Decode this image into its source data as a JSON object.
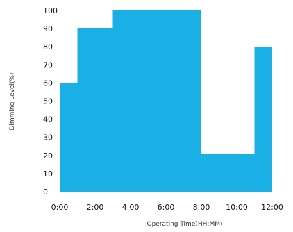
{
  "chart_data": {
    "type": "area",
    "title": "",
    "xlabel": "Operating Time(HH:MM)",
    "ylabel": "Dimming Level(%)",
    "xlim": [
      0,
      12
    ],
    "ylim": [
      0,
      100
    ],
    "x_ticks": [
      "0:00",
      "2:00",
      "4:00",
      "6:00",
      "8:00",
      "10:00",
      "12:00"
    ],
    "y_ticks": [
      0,
      10,
      20,
      30,
      40,
      50,
      60,
      70,
      80,
      90,
      100
    ],
    "grid": false,
    "legend": "none",
    "series": [
      {
        "steps": [
          {
            "start": 0,
            "end": 1,
            "value": 60
          },
          {
            "start": 1,
            "end": 3,
            "value": 90
          },
          {
            "start": 3,
            "end": 8,
            "value": 100
          },
          {
            "start": 8,
            "end": 11,
            "value": 21
          },
          {
            "start": 11,
            "end": 12,
            "value": 80
          }
        ]
      }
    ],
    "colors": {
      "fill": "#1ab0e5",
      "text": "#111111"
    }
  }
}
